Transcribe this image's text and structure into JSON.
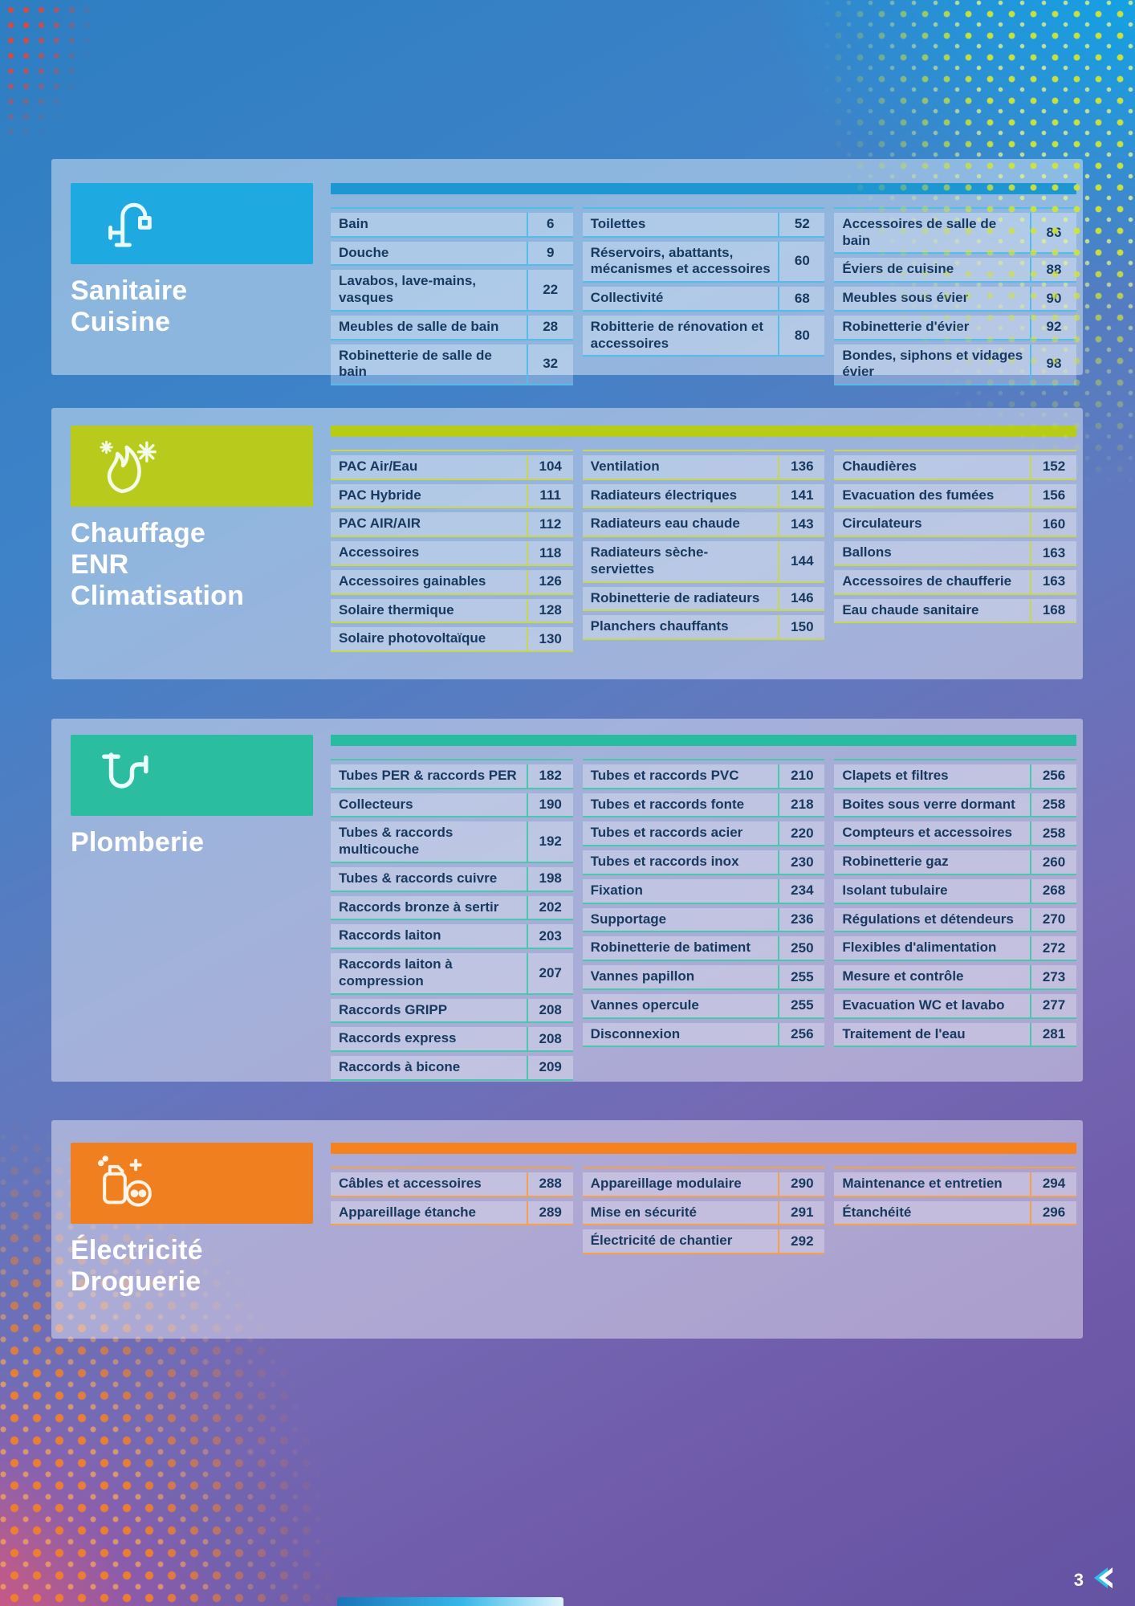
{
  "footer": {
    "page_number": "3"
  },
  "brand_chevron_color": "#2fc0ee",
  "sections": [
    {
      "id": "sanitaire-cuisine",
      "title_lines": [
        "Sanitaire",
        "Cuisine"
      ],
      "icon": "faucet-icon",
      "colors": {
        "box": "#1FA9E1",
        "bar": "#1E96D2",
        "line": "#55BCE9"
      },
      "columns": [
        {
          "rows": [
            {
              "label": "Bain",
              "page": "6"
            },
            {
              "label": "Douche",
              "page": "9"
            },
            {
              "label": "Lavabos, lave-mains, vasques",
              "page": "22"
            },
            {
              "label": "Meubles de salle de bain",
              "page": "28"
            },
            {
              "label": "Robinetterie de salle de bain",
              "page": "32"
            }
          ]
        },
        {
          "rows": [
            {
              "label": "Toilettes",
              "page": "52"
            },
            {
              "label": "Réservoirs, abattants, mécanismes et accessoires",
              "page": "60"
            },
            {
              "label": "Collectivité",
              "page": "68"
            },
            {
              "label": "Robitterie de rénovation et accessoires",
              "page": "80"
            }
          ]
        },
        {
          "rows": [
            {
              "label": "Accessoires de salle de bain",
              "page": "86"
            },
            {
              "label": "Éviers de cuisine",
              "page": "88"
            },
            {
              "label": "Meubles sous évier",
              "page": "90"
            },
            {
              "label": "Robinetterie d'évier",
              "page": "92"
            },
            {
              "label": "Bondes, siphons et vidages évier",
              "page": "98"
            }
          ]
        }
      ]
    },
    {
      "id": "chauffage-enr-climatisation",
      "title_lines": [
        "Chauffage",
        "ENR",
        "Climatisation"
      ],
      "icon": "flame-snowflake-icon",
      "colors": {
        "box": "#B8CB1D",
        "bar": "#B7CC15",
        "line": "#C8D752"
      },
      "columns": [
        {
          "rows": [
            {
              "label": "PAC Air/Eau",
              "page": "104"
            },
            {
              "label": "PAC Hybride",
              "page": "111"
            },
            {
              "label": "PAC AIR/AIR",
              "page": "112"
            },
            {
              "label": "Accessoires",
              "page": "118"
            },
            {
              "label": "Accessoires gainables",
              "page": "126"
            },
            {
              "label": "Solaire thermique",
              "page": "128"
            },
            {
              "label": "Solaire photovoltaïque",
              "page": "130"
            }
          ]
        },
        {
          "rows": [
            {
              "label": "Ventilation",
              "page": "136"
            },
            {
              "label": "Radiateurs électriques",
              "page": "141"
            },
            {
              "label": "Radiateurs eau chaude",
              "page": "143"
            },
            {
              "label": "Radiateurs sèche-serviettes",
              "page": "144"
            },
            {
              "label": "Robinetterie de radiateurs",
              "page": "146"
            },
            {
              "label": "Planchers chauffants",
              "page": "150"
            }
          ]
        },
        {
          "rows": [
            {
              "label": "Chaudières",
              "page": "152"
            },
            {
              "label": "Evacuation des fumées",
              "page": "156"
            },
            {
              "label": "Circulateurs",
              "page": "160"
            },
            {
              "label": "Ballons",
              "page": "163"
            },
            {
              "label": "Accessoires de chaufferie",
              "page": "163"
            },
            {
              "label": "Eau chaude sanitaire",
              "page": "168"
            }
          ]
        }
      ]
    },
    {
      "id": "plomberie",
      "title_lines": [
        "Plomberie"
      ],
      "icon": "pipe-trap-icon",
      "colors": {
        "box": "#2BBD9F",
        "bar": "#29BCA0",
        "line": "#4AC7AC"
      },
      "columns": [
        {
          "rows": [
            {
              "label": "Tubes PER & raccords PER",
              "page": "182"
            },
            {
              "label": "Collecteurs",
              "page": "190"
            },
            {
              "label": "Tubes & raccords multicouche",
              "page": "192"
            },
            {
              "label": "Tubes & raccords cuivre",
              "page": "198"
            },
            {
              "label": "Raccords bronze à sertir",
              "page": "202"
            },
            {
              "label": "Raccords laiton",
              "page": "203"
            },
            {
              "label": "Raccords laiton à compression",
              "page": "207"
            },
            {
              "label": "Raccords GRIPP",
              "page": "208"
            },
            {
              "label": "Raccords express",
              "page": "208"
            },
            {
              "label": "Raccords à bicone",
              "page": "209"
            }
          ]
        },
        {
          "rows": [
            {
              "label": "Tubes et raccords PVC",
              "page": "210"
            },
            {
              "label": "Tubes et raccords fonte",
              "page": "218"
            },
            {
              "label": "Tubes et raccords acier",
              "page": "220"
            },
            {
              "label": "Tubes et raccords inox",
              "page": "230"
            },
            {
              "label": "Fixation",
              "page": "234"
            },
            {
              "label": "Supportage",
              "page": "236"
            },
            {
              "label": "Robinetterie de batiment",
              "page": "250"
            },
            {
              "label": "Vannes papillon",
              "page": "255"
            },
            {
              "label": "Vannes opercule",
              "page": "255"
            },
            {
              "label": "Disconnexion",
              "page": "256"
            }
          ]
        },
        {
          "rows": [
            {
              "label": "Clapets et filtres",
              "page": "256"
            },
            {
              "label": "Boites sous verre dormant",
              "page": "258"
            },
            {
              "label": "Compteurs et accessoires",
              "page": "258"
            },
            {
              "label": "Robinetterie gaz",
              "page": "260"
            },
            {
              "label": "Isolant tubulaire",
              "page": "268"
            },
            {
              "label": "Régulations et détendeurs",
              "page": "270"
            },
            {
              "label": "Flexibles d'alimentation",
              "page": "272"
            },
            {
              "label": "Mesure et contrôle",
              "page": "273"
            },
            {
              "label": "Evacuation WC et lavabo",
              "page": "277"
            },
            {
              "label": "Traitement de l'eau",
              "page": "281"
            }
          ]
        }
      ]
    },
    {
      "id": "electricite-droguerie",
      "title_lines": [
        "Électricité",
        "Droguerie"
      ],
      "icon": "spray-bottle-socket-icon",
      "colors": {
        "box": "#F0801F",
        "bar": "#F5821F",
        "line": "#F6A04C"
      },
      "columns": [
        {
          "rows": [
            {
              "label": "Câbles et accessoires",
              "page": "288"
            },
            {
              "label": "Appareillage étanche",
              "page": "289"
            }
          ]
        },
        {
          "rows": [
            {
              "label": "Appareillage modulaire",
              "page": "290"
            },
            {
              "label": "Mise en sécurité",
              "page": "291"
            },
            {
              "label": "Électricité de chantier",
              "page": "292"
            }
          ]
        },
        {
          "rows": [
            {
              "label": "Maintenance et entretien",
              "page": "294"
            },
            {
              "label": "Étanchéité",
              "page": "296"
            }
          ]
        }
      ]
    }
  ]
}
